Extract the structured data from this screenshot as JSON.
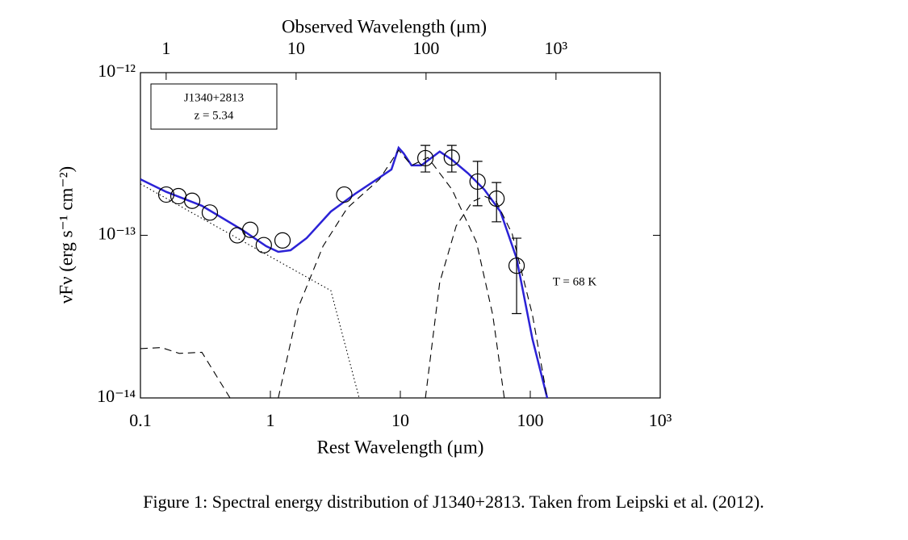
{
  "chart_data": {
    "type": "line",
    "title": "Observed Wavelength (μm)",
    "xlabel": "Rest Wavelength (μm)",
    "ylabel": "νFν (erg s⁻¹ cm⁻²)",
    "xscale": "log",
    "yscale": "log",
    "xlim": [
      0.1,
      1000
    ],
    "xticks": [
      0.1,
      1,
      10,
      100,
      {
        "value": 1000,
        "label": "10³"
      }
    ],
    "x2lim": [
      0.634,
      6340
    ],
    "x2ticks": [
      1,
      10,
      100,
      {
        "value": 1000,
        "label": "10³"
      }
    ],
    "ylim": [
      1e-14,
      1e-12
    ],
    "yticks": [
      {
        "value": 1e-14,
        "label": "10⁻¹⁴"
      },
      {
        "value": 1e-13,
        "label": "10⁻¹³"
      },
      {
        "value": 1e-12,
        "label": "10⁻¹²"
      }
    ],
    "annotations": {
      "object": "J1340+2813",
      "redshift": "z = 5.34",
      "temperature": "T = 68 K"
    },
    "points": {
      "x": [
        0.158,
        0.196,
        0.25,
        0.342,
        0.556,
        0.7,
        0.89,
        1.24,
        3.7,
        15.6,
        24.9,
        39.3,
        55,
        78.5
      ],
      "values": [
        1.78e-13,
        1.74e-13,
        1.63e-13,
        1.38e-13,
        1e-13,
        1.08e-13,
        8.7e-14,
        9.3e-14,
        1.78e-13,
        2.98e-13,
        3e-13,
        2.14e-13,
        1.68e-13,
        6.5e-14
      ],
      "yerr_lower": [
        null,
        null,
        null,
        null,
        null,
        null,
        null,
        null,
        null,
        2.45e-13,
        2.45e-13,
        1.52e-13,
        1.21e-13,
        3.3e-14
      ],
      "yerr_upper": [
        null,
        null,
        null,
        null,
        null,
        null,
        null,
        null,
        null,
        3.57e-13,
        3.57e-13,
        2.85e-13,
        2.11e-13,
        9.6e-14
      ]
    },
    "series": [
      {
        "color": "#2b22d6",
        "style": "solid",
        "x": [
          0.1,
          0.158,
          0.297,
          0.607,
          0.93,
          1.15,
          1.43,
          1.9,
          2.92,
          4.49,
          6.9,
          8.55,
          9.7,
          10.6,
          12.2,
          14.5,
          17.5,
          20.1,
          25.0,
          33.3,
          44.3,
          58.9,
          78.4,
          104,
          135
        ],
        "values": [
          2.21e-13,
          1.85e-13,
          1.52e-13,
          1.08e-13,
          8.57e-14,
          7.91e-14,
          8.09e-14,
          9.61e-14,
          1.4e-13,
          1.8e-13,
          2.26e-13,
          2.54e-13,
          3.45e-13,
          3.19e-13,
          2.69e-13,
          2.69e-13,
          3.01e-13,
          3.27e-13,
          2.91e-13,
          2.4e-13,
          1.91e-13,
          1.4e-13,
          7.23e-14,
          2.3e-14,
          1e-14
        ]
      },
      {
        "color": "#000000",
        "style": "dotted",
        "x": [
          0.1,
          2.92,
          4.82
        ],
        "values": [
          2.07e-13,
          4.57e-14,
          1e-14
        ]
      },
      {
        "color": "#000000",
        "style": "dashed",
        "x": [
          1.15,
          1.65,
          2.54,
          3.9,
          6.9,
          9.7,
          12.2,
          16.3,
          25.0,
          38.5,
          51.4,
          63.1
        ],
        "values": [
          1e-14,
          3.64e-14,
          8.57e-14,
          1.47e-13,
          2.21e-13,
          3.34e-13,
          2.69e-13,
          3.01e-13,
          1.91e-13,
          9.08e-14,
          3.24e-14,
          1e-14
        ]
      },
      {
        "color": "#000000",
        "style": "dashed",
        "x": [
          15.6,
          20.1,
          26.9,
          35.8,
          44.3,
          54.8,
          72.6,
          104,
          135
        ],
        "values": [
          1e-14,
          5.13e-14,
          1.14e-13,
          1.61e-13,
          1.74e-13,
          1.61e-13,
          1.02e-13,
          3.24e-14,
          1e-14
        ]
      },
      {
        "color": "#000000",
        "style": "dashed",
        "x": [
          0.1,
          0.145,
          0.199,
          0.297,
          0.489
        ],
        "values": [
          2.01e-14,
          2.04e-14,
          1.88e-14,
          1.91e-14,
          1e-14
        ]
      }
    ]
  },
  "caption": "Figure 1: Spectral energy distribution of J1340+2813. Taken from Leipski et al. (2012)."
}
